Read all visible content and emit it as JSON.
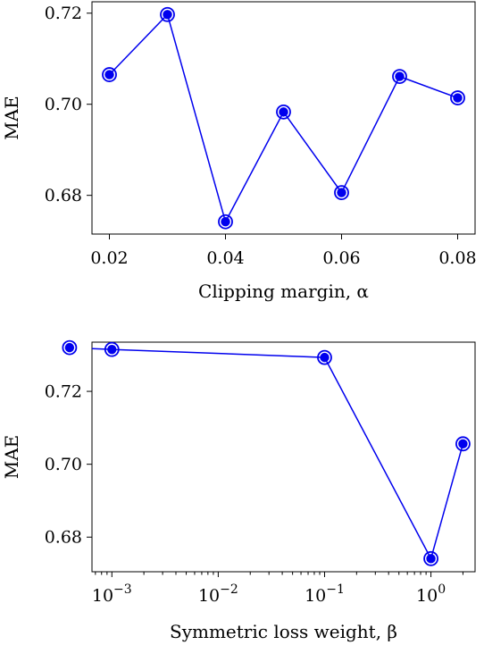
{
  "chart_data": [
    {
      "type": "line",
      "xlabel": "Clipping margin, α",
      "ylabel": "MAE",
      "xscale": "linear",
      "xlim": [
        0.017,
        0.083
      ],
      "ylim": [
        0.6715,
        0.7225
      ],
      "xticks": [
        0.02,
        0.04,
        0.06,
        0.08
      ],
      "xtick_labels": [
        "0.02",
        "0.04",
        "0.06",
        "0.08"
      ],
      "yticks": [
        0.68,
        0.7,
        0.72
      ],
      "ytick_labels": [
        "0.68",
        "0.70",
        "0.72"
      ],
      "minor_xticks": [],
      "color": "#0000ee",
      "grid": false,
      "series": [
        {
          "x": [
            0.02,
            0.03,
            0.04,
            0.05,
            0.06,
            0.07,
            0.08
          ],
          "y": [
            0.7065,
            0.7197,
            0.6742,
            0.6983,
            0.6806,
            0.7061,
            0.7014
          ]
        }
      ]
    },
    {
      "type": "line",
      "xlabel": "Symmetric loss weight, β",
      "ylabel": "MAE",
      "xscale": "log",
      "xlim": [
        0.00065,
        2.6
      ],
      "ylim": [
        0.6705,
        0.7335
      ],
      "xticks": [
        0.001,
        0.01,
        0.1,
        1
      ],
      "xtick_labels": [
        {
          "base": "10",
          "exp": "−3"
        },
        {
          "base": "10",
          "exp": "−2"
        },
        {
          "base": "10",
          "exp": "−1"
        },
        {
          "base": "10",
          "exp": "0"
        }
      ],
      "yticks": [
        0.68,
        0.7,
        0.72
      ],
      "ytick_labels": [
        "0.68",
        "0.70",
        "0.72"
      ],
      "minor_xticks": [
        0.0007,
        0.0008,
        0.0009,
        0.002,
        0.003,
        0.004,
        0.005,
        0.006,
        0.007,
        0.008,
        0.009,
        0.02,
        0.03,
        0.04,
        0.05,
        0.06,
        0.07,
        0.08,
        0.09,
        0.2,
        0.3,
        0.4,
        0.5,
        0.6,
        0.7,
        0.8,
        0.9,
        2
      ],
      "color": "#0000ee",
      "grid": false,
      "series": [
        {
          "x": [
            0.0004,
            0.001,
            0.1,
            1,
            2
          ],
          "y": [
            0.732,
            0.7315,
            0.7293,
            0.6741,
            0.7056
          ]
        }
      ]
    }
  ]
}
